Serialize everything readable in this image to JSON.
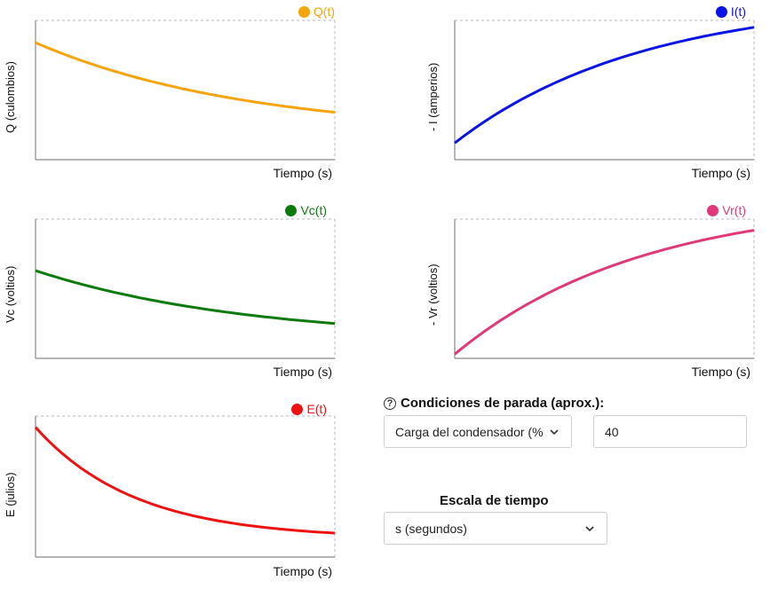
{
  "charts": [
    {
      "id": "q",
      "legend": "Q(t)",
      "color": "#f5a40c",
      "ylabel": "Q (culombios)",
      "xlabel": "Tiempo (s)",
      "chart_data": {
        "type": "line",
        "series": [
          {
            "name": "Q(t)",
            "y_start": 0.84,
            "y_end": 0.34,
            "shape": "decay"
          }
        ]
      }
    },
    {
      "id": "i",
      "legend": "I(t)",
      "color": "#0b14e6",
      "ylabel": "- I (amperios)",
      "xlabel": "Tiempo (s)",
      "chart_data": {
        "type": "line",
        "series": [
          {
            "name": "I(t)",
            "y_start": 0.12,
            "y_end": 0.95,
            "shape": "rise"
          }
        ]
      }
    },
    {
      "id": "vc",
      "legend": "Vc(t)",
      "color": "#0d7a0d",
      "ylabel": "Vc (voltios)",
      "xlabel": "Tiempo (s)",
      "chart_data": {
        "type": "line",
        "series": [
          {
            "name": "Vc(t)",
            "y_start": 0.63,
            "y_end": 0.25,
            "shape": "decay"
          }
        ]
      }
    },
    {
      "id": "vr",
      "legend": "Vr(t)",
      "color": "#e0397a",
      "ylabel": "- Vr (voltios)",
      "xlabel": "Tiempo (s)",
      "chart_data": {
        "type": "line",
        "series": [
          {
            "name": "Vr(t)",
            "y_start": 0.03,
            "y_end": 0.92,
            "shape": "rise"
          }
        ]
      }
    },
    {
      "id": "e",
      "legend": "E(t)",
      "color": "#ee1111",
      "ylabel": "E (julios)",
      "xlabel": "Tiempo (s)",
      "chart_data": {
        "type": "line",
        "series": [
          {
            "name": "E(t)",
            "y_start": 0.92,
            "y_end": 0.17,
            "shape": "decay-fast"
          }
        ]
      }
    }
  ],
  "stop_conditions": {
    "title": "Condiciones de parada (aprox.):",
    "help_icon": "question-circle-icon",
    "select_value": "Carga del condensador (%)",
    "input_value": "40"
  },
  "time_scale": {
    "title": "Escala de tiempo",
    "select_value": "s (segundos)"
  }
}
